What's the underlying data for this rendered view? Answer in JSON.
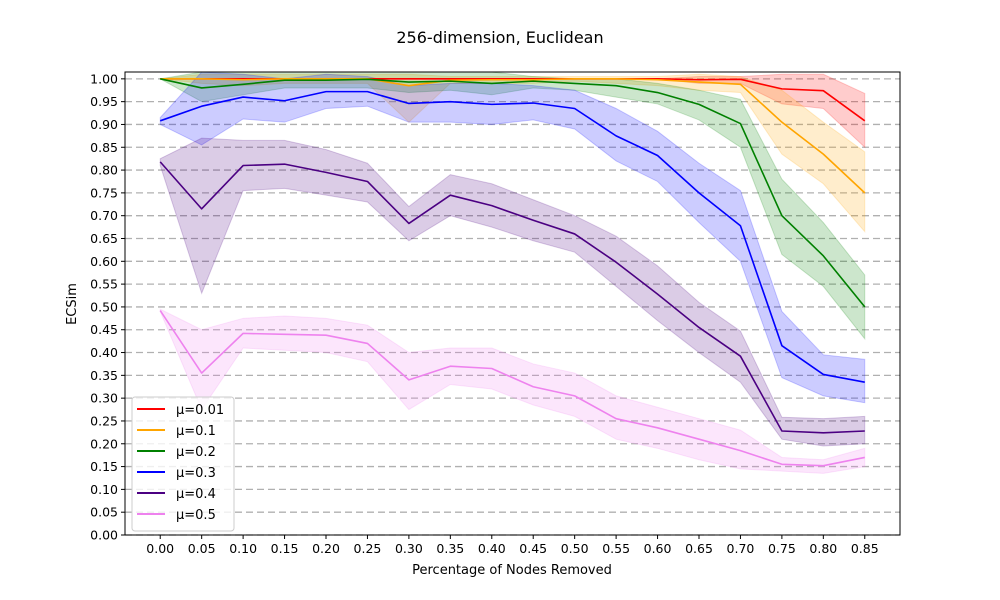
{
  "chart_data": {
    "type": "line",
    "title": "256-dimension, Euclidean",
    "xlabel": "Percentage of Nodes Removed",
    "ylabel": "ECSim",
    "x": [
      0.0,
      0.05,
      0.1,
      0.15,
      0.2,
      0.25,
      0.3,
      0.35,
      0.4,
      0.45,
      0.5,
      0.55,
      0.6,
      0.65,
      0.7,
      0.75,
      0.8,
      0.85
    ],
    "x_tick_labels": [
      "0.00",
      "0.05",
      "0.10",
      "0.15",
      "0.20",
      "0.25",
      "0.30",
      "0.35",
      "0.40",
      "0.45",
      "0.50",
      "0.55",
      "0.60",
      "0.65",
      "0.70",
      "0.75",
      "0.80",
      "0.85"
    ],
    "y_ticks": [
      0.0,
      0.05,
      0.1,
      0.15,
      0.2,
      0.25,
      0.3,
      0.35,
      0.4,
      0.45,
      0.5,
      0.55,
      0.6,
      0.65,
      0.7,
      0.75,
      0.8,
      0.85,
      0.9,
      0.95,
      1.0
    ],
    "y_tick_labels": [
      "0.00",
      "0.05",
      "0.10",
      "0.15",
      "0.20",
      "0.25",
      "0.30",
      "0.35",
      "0.40",
      "0.45",
      "0.50",
      "0.55",
      "0.60",
      "0.65",
      "0.70",
      "0.75",
      "0.80",
      "0.85",
      "0.90",
      "0.95",
      "1.00"
    ],
    "xlim": [
      -0.0425,
      0.8925
    ],
    "ylim": [
      0.0,
      1.015
    ],
    "grid": "horizontal dashed",
    "legend_position": "lower-left",
    "series": [
      {
        "name": "μ=0.01",
        "color": "#ff0000",
        "values": [
          1.0,
          1.0,
          1.0,
          1.0,
          1.0,
          1.0,
          1.0,
          1.0,
          1.0,
          1.0,
          1.0,
          1.0,
          1.0,
          0.998,
          0.999,
          0.978,
          0.974,
          0.908
        ],
        "upper": [
          1.0,
          1.0,
          1.0,
          1.0,
          1.0,
          1.0,
          1.0,
          1.0,
          1.0,
          1.0,
          1.0,
          1.0,
          1.0,
          1.005,
          1.005,
          1.01,
          1.01,
          0.968
        ],
        "lower": [
          1.0,
          1.0,
          1.0,
          1.0,
          1.0,
          1.0,
          1.0,
          1.0,
          1.0,
          1.0,
          1.0,
          1.0,
          1.0,
          0.99,
          0.99,
          0.945,
          0.935,
          0.85
        ]
      },
      {
        "name": "μ=0.1",
        "color": "#ffa500",
        "values": [
          1.0,
          1.0,
          0.998,
          1.0,
          1.0,
          1.0,
          0.985,
          0.997,
          0.998,
          0.998,
          1.0,
          1.0,
          0.998,
          0.993,
          0.988,
          0.905,
          0.835,
          0.75
        ],
        "upper": [
          1.0,
          1.01,
          1.01,
          1.01,
          1.01,
          1.01,
          1.01,
          1.005,
          1.005,
          1.005,
          1.005,
          1.005,
          1.005,
          1.01,
          1.005,
          0.975,
          0.905,
          0.84
        ],
        "lower": [
          1.0,
          0.99,
          0.985,
          0.99,
          0.99,
          0.99,
          0.905,
          0.99,
          0.99,
          0.99,
          0.995,
          0.99,
          0.985,
          0.975,
          0.97,
          0.835,
          0.77,
          0.665
        ]
      },
      {
        "name": "μ=0.2",
        "color": "#008000",
        "values": [
          1.0,
          0.98,
          0.988,
          0.997,
          0.997,
          0.999,
          0.993,
          0.995,
          0.99,
          0.995,
          0.99,
          0.985,
          0.97,
          0.944,
          0.902,
          0.7,
          0.612,
          0.5
        ],
        "upper": [
          1.0,
          1.015,
          1.015,
          1.015,
          1.015,
          1.015,
          1.015,
          1.015,
          1.015,
          1.005,
          1.0,
          1.0,
          0.99,
          0.975,
          0.955,
          0.78,
          0.685,
          0.57
        ],
        "lower": [
          1.0,
          0.95,
          0.965,
          0.98,
          0.98,
          0.98,
          0.97,
          0.975,
          0.965,
          0.98,
          0.975,
          0.96,
          0.945,
          0.91,
          0.85,
          0.615,
          0.545,
          0.43
        ]
      },
      {
        "name": "μ=0.3",
        "color": "#0000ff",
        "values": [
          0.908,
          0.94,
          0.96,
          0.952,
          0.972,
          0.972,
          0.946,
          0.95,
          0.944,
          0.947,
          0.935,
          0.875,
          0.832,
          0.75,
          0.678,
          0.415,
          0.352,
          0.335
        ],
        "upper": [
          0.915,
          1.015,
          1.01,
          1.0,
          1.01,
          1.005,
          0.985,
          0.99,
          0.99,
          0.985,
          0.975,
          0.935,
          0.885,
          0.815,
          0.755,
          0.49,
          0.395,
          0.385
        ],
        "lower": [
          0.9,
          0.855,
          0.912,
          0.905,
          0.935,
          0.94,
          0.905,
          0.905,
          0.9,
          0.91,
          0.89,
          0.82,
          0.775,
          0.685,
          0.6,
          0.345,
          0.305,
          0.29
        ]
      },
      {
        "name": "μ=0.4",
        "color": "#4b0082",
        "values": [
          0.818,
          0.715,
          0.81,
          0.813,
          0.795,
          0.775,
          0.683,
          0.745,
          0.722,
          0.69,
          0.66,
          0.598,
          0.528,
          0.455,
          0.392,
          0.228,
          0.224,
          0.228
        ],
        "upper": [
          0.825,
          0.87,
          0.865,
          0.865,
          0.845,
          0.815,
          0.72,
          0.79,
          0.77,
          0.735,
          0.7,
          0.655,
          0.59,
          0.51,
          0.447,
          0.258,
          0.255,
          0.26
        ],
        "lower": [
          0.81,
          0.53,
          0.755,
          0.76,
          0.745,
          0.73,
          0.645,
          0.7,
          0.675,
          0.645,
          0.62,
          0.545,
          0.47,
          0.4,
          0.335,
          0.21,
          0.195,
          0.2
        ]
      },
      {
        "name": "μ=0.5",
        "color": "#ee82ee",
        "values": [
          0.492,
          0.355,
          0.442,
          0.44,
          0.438,
          0.42,
          0.34,
          0.37,
          0.365,
          0.325,
          0.305,
          0.255,
          0.235,
          0.21,
          0.185,
          0.155,
          0.152,
          0.17
        ],
        "upper": [
          0.495,
          0.45,
          0.475,
          0.48,
          0.475,
          0.46,
          0.4,
          0.41,
          0.41,
          0.375,
          0.355,
          0.305,
          0.28,
          0.255,
          0.23,
          0.17,
          0.165,
          0.19
        ],
        "lower": [
          0.49,
          0.275,
          0.41,
          0.405,
          0.4,
          0.38,
          0.275,
          0.33,
          0.32,
          0.285,
          0.26,
          0.21,
          0.19,
          0.165,
          0.145,
          0.14,
          0.135,
          0.15
        ]
      }
    ]
  }
}
